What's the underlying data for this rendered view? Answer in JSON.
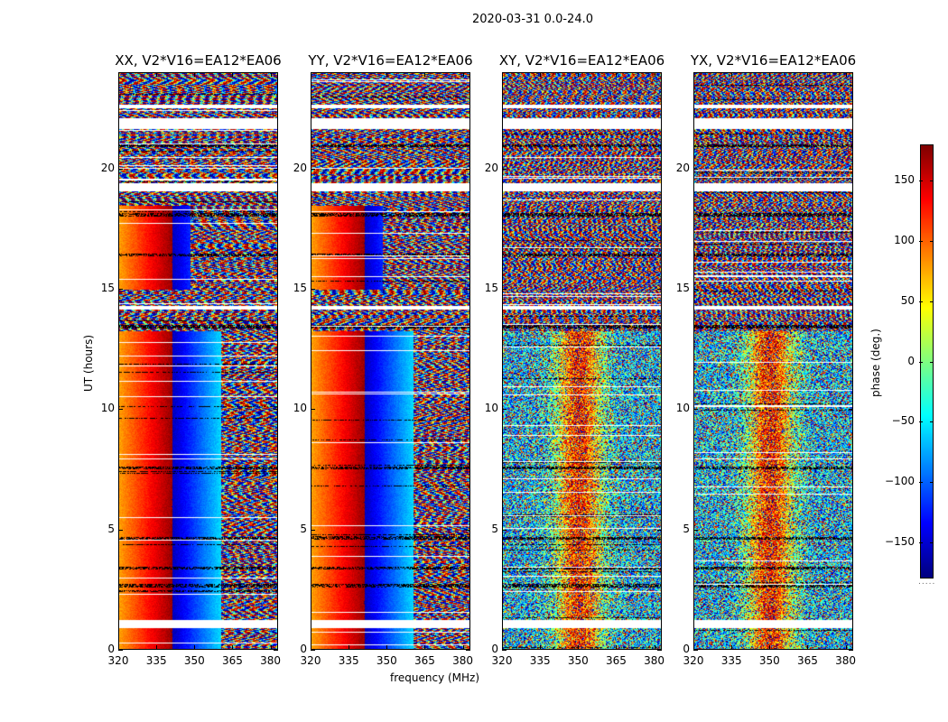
{
  "chart_data": {
    "type": "heatmap",
    "figure_title": "2020-03-31 0.0-24.0",
    "xlabel": "frequency (MHz)",
    "ylabel": "UT (hours)",
    "xlim": [
      320,
      383
    ],
    "ylim": [
      0,
      24
    ],
    "x_ticks": [
      "320",
      "335",
      "350",
      "365",
      "380"
    ],
    "x_tick_values": [
      320,
      335,
      350,
      365,
      380
    ],
    "y_ticks": [
      "0",
      "5",
      "10",
      "15",
      "20"
    ],
    "y_tick_values": [
      0,
      5,
      10,
      15,
      20
    ],
    "panels": [
      {
        "title": "XX, V2*V16=EA12*EA06",
        "pattern": "parallel"
      },
      {
        "title": "YY, V2*V16=EA12*EA06",
        "pattern": "parallel"
      },
      {
        "title": "XY, V2*V16=EA12*EA06",
        "pattern": "cross"
      },
      {
        "title": "YX, V2*V16=EA12*EA06",
        "pattern": "cross"
      }
    ],
    "colorbar": {
      "label": "phase (deg.)",
      "range": [
        -180,
        180
      ],
      "ticks": [
        "150",
        "100",
        "50",
        "0",
        "−50",
        "−100",
        "−150"
      ],
      "tick_values": [
        150,
        100,
        50,
        0,
        -50,
        -100,
        -150
      ],
      "colormap": "jet",
      "footer": "....."
    },
    "flagged_hours": [
      [
        0.95,
        1.3
      ],
      [
        14.2,
        14.35
      ],
      [
        19.1,
        19.45
      ],
      [
        21.7,
        22.15
      ],
      [
        22.55,
        22.7
      ]
    ],
    "dark_hours": [
      [
        2.65,
        2.8
      ],
      [
        3.4,
        3.5
      ],
      [
        4.65,
        4.75
      ],
      [
        7.55,
        7.65
      ],
      [
        13.4,
        13.55
      ],
      [
        16.4,
        16.5
      ],
      [
        18.05,
        18.2
      ],
      [
        20.95,
        21.05
      ]
    ]
  }
}
